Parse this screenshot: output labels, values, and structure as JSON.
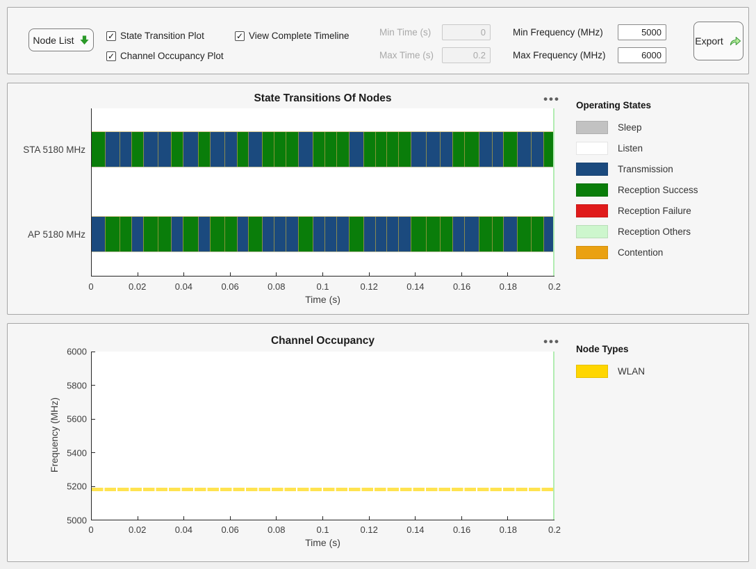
{
  "toolbar": {
    "node_list_label": "Node List",
    "node_list_icon": "down-arrow",
    "checkboxes": [
      {
        "label": "State Transition Plot",
        "checked": true
      },
      {
        "label": "Channel Occupancy Plot",
        "checked": true
      },
      {
        "label": "View Complete Timeline",
        "checked": true
      }
    ],
    "check_glyph": "✓",
    "fields": [
      {
        "label": "Min Time (s)",
        "value": "0",
        "disabled": true
      },
      {
        "label": "Max Time (s)",
        "value": "0.2",
        "disabled": true
      },
      {
        "label": "Min Frequency (MHz)",
        "value": "5000",
        "disabled": false
      },
      {
        "label": "Max Frequency (MHz)",
        "value": "6000",
        "disabled": false
      }
    ],
    "export_label": "Export",
    "export_icon": "share-arrow"
  },
  "menu_glyph": "•••",
  "colors": {
    "accent_green": "#2a9928",
    "panel_bg": "#f6f6f6",
    "plot_bg": "#ffffff"
  },
  "chart_data": [
    {
      "type": "timeline",
      "title": "State Transitions Of Nodes",
      "xlabel": "Time (s)",
      "xlim": [
        0,
        0.2
      ],
      "x_ticks": [
        "0",
        "0.02",
        "0.04",
        "0.06",
        "0.08",
        "0.1",
        "0.12",
        "0.14",
        "0.16",
        "0.18",
        "0.2"
      ],
      "state_colors": {
        "tx": "#1b4a7e",
        "rx": "#0a7d0a"
      },
      "segment_weights": [
        20,
        21,
        18,
        17,
        21,
        19,
        17,
        22,
        18,
        21,
        18,
        16,
        20,
        17,
        17,
        18,
        22,
        17,
        17,
        18,
        21,
        17,
        16,
        17,
        18,
        22,
        21,
        18,
        17,
        21,
        19,
        16,
        21,
        20,
        18,
        16
      ],
      "rows": [
        {
          "label": "STA 5180 MHz",
          "states": [
            "rx",
            "tx",
            "tx",
            "rx",
            "tx",
            "tx",
            "rx",
            "tx",
            "rx",
            "tx",
            "tx",
            "rx",
            "tx",
            "rx",
            "rx",
            "rx",
            "tx",
            "rx",
            "rx",
            "rx",
            "tx",
            "rx",
            "rx",
            "rx",
            "rx",
            "tx",
            "tx",
            "tx",
            "rx",
            "rx",
            "tx",
            "tx",
            "rx",
            "tx",
            "tx",
            "rx"
          ]
        },
        {
          "label": "AP 5180 MHz",
          "states": [
            "tx",
            "rx",
            "rx",
            "tx",
            "rx",
            "rx",
            "tx",
            "rx",
            "tx",
            "rx",
            "rx",
            "tx",
            "rx",
            "tx",
            "tx",
            "tx",
            "rx",
            "tx",
            "tx",
            "tx",
            "rx",
            "tx",
            "tx",
            "tx",
            "tx",
            "rx",
            "rx",
            "rx",
            "tx",
            "tx",
            "rx",
            "rx",
            "tx",
            "rx",
            "rx",
            "tx"
          ]
        }
      ],
      "timeline_marker": {
        "x": 0.2,
        "color": "#b2ecb2"
      },
      "legend_title": "Operating States",
      "legend_position": "right",
      "legend": [
        {
          "label": "Sleep",
          "color": "#c2c2c2"
        },
        {
          "label": "Listen",
          "color": "#ffffff"
        },
        {
          "label": "Transmission",
          "color": "#1b4a7e"
        },
        {
          "label": "Reception Success",
          "color": "#0a7d0a"
        },
        {
          "label": "Reception Failure",
          "color": "#e01b1b"
        },
        {
          "label": "Reception Others",
          "color": "#cdf6cd"
        },
        {
          "label": "Contention",
          "color": "#eaa112"
        }
      ]
    },
    {
      "type": "occupancy",
      "title": "Channel Occupancy",
      "xlabel": "Time (s)",
      "ylabel": "Frequency (MHz)",
      "xlim": [
        0,
        0.2
      ],
      "ylim": [
        5000,
        6000
      ],
      "x_ticks": [
        "0",
        "0.02",
        "0.04",
        "0.06",
        "0.08",
        "0.1",
        "0.12",
        "0.14",
        "0.16",
        "0.18",
        "0.2"
      ],
      "y_ticks": [
        "5000",
        "5200",
        "5400",
        "5600",
        "5800",
        "6000"
      ],
      "band": {
        "center_mhz": 5180,
        "bandwidth_mhz": 20,
        "start_s": 0,
        "end_s": 0.2,
        "color": "#ffe350",
        "label": "WLAN"
      },
      "timeline_marker": {
        "x": 0.2,
        "color": "#b2ecb2"
      },
      "legend_title": "Node Types",
      "legend_position": "right",
      "legend": [
        {
          "label": "WLAN",
          "color": "#ffd600"
        }
      ]
    }
  ]
}
